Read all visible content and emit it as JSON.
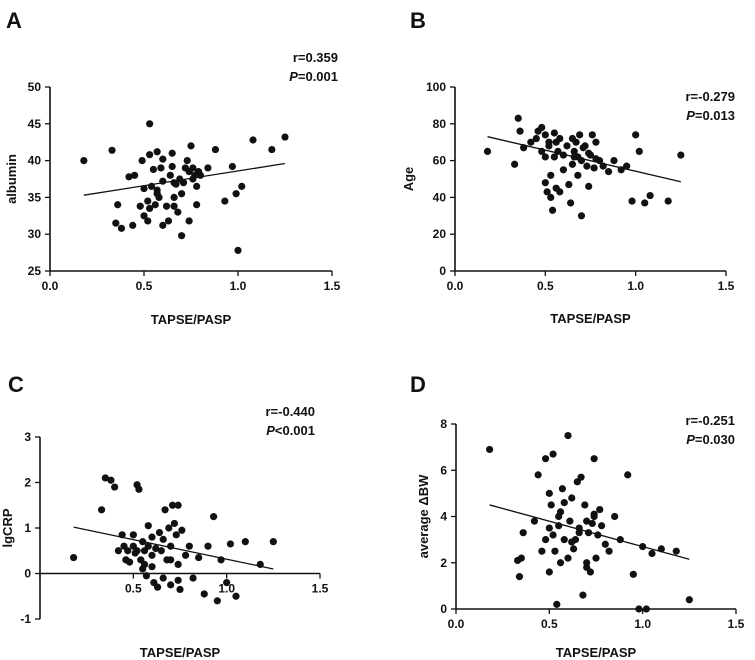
{
  "chart_data": [
    {
      "panel": "A",
      "type": "scatter",
      "xlabel": "TAPSE/PASP",
      "ylabel": "albumin",
      "xlim": [
        0,
        1.5
      ],
      "ylim": [
        25,
        50
      ],
      "xticks": [
        0.0,
        0.5,
        1.0,
        1.5
      ],
      "xtick_labels": [
        "0.0",
        "0.5",
        "1.0",
        "1.5"
      ],
      "yticks": [
        25,
        30,
        35,
        40,
        45,
        50
      ],
      "ytick_labels": [
        "25",
        "30",
        "35",
        "40",
        "45",
        "50"
      ],
      "stats": {
        "r_text": "r=0.359",
        "p_label": "P",
        "p_value": "=0.001"
      },
      "fit_line": {
        "x": [
          0.18,
          1.25
        ],
        "y": [
          35.3,
          39.6
        ]
      },
      "points": {
        "x": [
          0.18,
          0.33,
          0.35,
          0.36,
          0.38,
          0.42,
          0.44,
          0.45,
          0.48,
          0.49,
          0.5,
          0.5,
          0.52,
          0.52,
          0.53,
          0.53,
          0.54,
          0.55,
          0.56,
          0.57,
          0.57,
          0.58,
          0.59,
          0.6,
          0.6,
          0.6,
          0.62,
          0.63,
          0.64,
          0.65,
          0.65,
          0.66,
          0.66,
          0.67,
          0.68,
          0.69,
          0.7,
          0.7,
          0.71,
          0.72,
          0.73,
          0.74,
          0.74,
          0.75,
          0.76,
          0.76,
          0.77,
          0.78,
          0.78,
          0.79,
          0.8,
          0.84,
          0.88,
          0.93,
          0.97,
          0.99,
          1.0,
          1.02,
          1.08,
          1.18,
          1.25,
          0.53,
          0.57,
          0.66
        ],
        "y": [
          40.0,
          41.4,
          31.5,
          34.0,
          30.8,
          37.8,
          31.2,
          38.0,
          33.8,
          40.0,
          32.5,
          36.2,
          34.5,
          31.8,
          40.8,
          45.0,
          36.5,
          38.8,
          34.0,
          35.5,
          41.2,
          35.0,
          39.0,
          31.2,
          37.2,
          40.2,
          33.8,
          31.8,
          38.0,
          39.2,
          41.0,
          37.0,
          35.0,
          36.8,
          33.0,
          37.5,
          29.8,
          35.5,
          37.0,
          39.0,
          40.0,
          38.5,
          31.8,
          42.0,
          37.5,
          39.0,
          38.0,
          36.5,
          34.0,
          38.5,
          38.0,
          39.0,
          41.5,
          34.5,
          39.2,
          35.5,
          27.8,
          36.5,
          42.8,
          41.5,
          43.2,
          33.5,
          36.0,
          33.8
        ]
      }
    },
    {
      "panel": "B",
      "type": "scatter",
      "xlabel": "TAPSE/PASP",
      "ylabel": "Age",
      "xlim": [
        0,
        1.5
      ],
      "ylim": [
        0,
        100
      ],
      "xticks": [
        0.0,
        0.5,
        1.0,
        1.5
      ],
      "xtick_labels": [
        "0.0",
        "0.5",
        "1.0",
        "1.5"
      ],
      "yticks": [
        0,
        20,
        40,
        60,
        80,
        100
      ],
      "ytick_labels": [
        "0",
        "20",
        "40",
        "60",
        "80",
        "100"
      ],
      "stats": {
        "r_text": "r=-0.279",
        "p_label": "P",
        "p_value": "=0.013"
      },
      "fit_line": {
        "x": [
          0.18,
          1.25
        ],
        "y": [
          73.0,
          48.5
        ]
      },
      "points": {
        "x": [
          0.18,
          0.33,
          0.35,
          0.36,
          0.38,
          0.42,
          0.45,
          0.46,
          0.48,
          0.48,
          0.5,
          0.5,
          0.51,
          0.52,
          0.52,
          0.53,
          0.53,
          0.54,
          0.55,
          0.55,
          0.56,
          0.57,
          0.58,
          0.58,
          0.6,
          0.6,
          0.62,
          0.63,
          0.64,
          0.65,
          0.65,
          0.66,
          0.67,
          0.68,
          0.68,
          0.69,
          0.7,
          0.7,
          0.71,
          0.72,
          0.73,
          0.74,
          0.74,
          0.75,
          0.76,
          0.77,
          0.78,
          0.78,
          0.8,
          0.82,
          0.85,
          0.88,
          0.92,
          0.95,
          0.98,
          1.0,
          1.02,
          1.05,
          1.08,
          1.18,
          1.25,
          0.5,
          0.56,
          0.66
        ],
        "y": [
          65,
          58,
          83,
          76,
          67,
          70,
          72,
          76,
          65,
          78,
          62,
          74,
          43,
          70,
          68,
          52,
          40,
          33,
          75,
          62,
          70,
          65,
          43,
          72,
          63,
          55,
          68,
          47,
          37,
          72,
          58,
          65,
          70,
          62,
          52,
          74,
          30,
          60,
          67,
          68,
          57,
          64,
          46,
          63,
          74,
          56,
          70,
          61,
          60,
          57,
          54,
          60,
          55,
          57,
          38,
          74,
          65,
          37,
          41,
          38,
          63,
          48,
          45,
          62
        ]
      }
    },
    {
      "panel": "C",
      "type": "scatter",
      "xlabel": "TAPSE/PASP",
      "ylabel": "lgCRP",
      "xlim": [
        0,
        1.5
      ],
      "ylim": [
        -1,
        3
      ],
      "xticks": [
        0.0,
        0.5,
        1.0,
        1.5
      ],
      "xtick_labels": [
        "",
        "0.5",
        "1.0",
        "1.5"
      ],
      "yticks": [
        -1,
        0,
        1,
        2,
        3
      ],
      "ytick_labels": [
        "-1",
        "0",
        "1",
        "2",
        "3"
      ],
      "stats": {
        "r_text": "r=-0.440",
        "p_label": "P",
        "p_value": "<0.001"
      },
      "fit_line": {
        "x": [
          0.18,
          1.25
        ],
        "y": [
          1.02,
          0.1
        ]
      },
      "points": {
        "x": [
          0.18,
          0.33,
          0.35,
          0.38,
          0.4,
          0.42,
          0.44,
          0.45,
          0.46,
          0.47,
          0.48,
          0.5,
          0.5,
          0.51,
          0.52,
          0.53,
          0.54,
          0.55,
          0.55,
          0.56,
          0.57,
          0.58,
          0.58,
          0.6,
          0.6,
          0.61,
          0.62,
          0.63,
          0.64,
          0.65,
          0.66,
          0.67,
          0.68,
          0.69,
          0.7,
          0.7,
          0.71,
          0.72,
          0.73,
          0.74,
          0.74,
          0.75,
          0.76,
          0.78,
          0.8,
          0.82,
          0.85,
          0.88,
          0.9,
          0.93,
          0.95,
          0.97,
          1.0,
          1.02,
          1.05,
          1.1,
          1.18,
          1.25,
          0.52,
          0.56,
          0.6,
          0.66,
          0.7,
          0.74
        ],
        "y": [
          0.35,
          1.4,
          2.1,
          2.05,
          1.9,
          0.5,
          0.85,
          0.6,
          0.3,
          0.5,
          0.25,
          0.85,
          0.6,
          0.45,
          1.95,
          1.85,
          0.3,
          0.7,
          0.1,
          0.5,
          -0.05,
          1.05,
          0.6,
          0.4,
          0.15,
          -0.2,
          0.55,
          -0.3,
          0.9,
          0.5,
          0.75,
          1.4,
          0.3,
          1.0,
          0.6,
          -0.25,
          1.5,
          1.1,
          0.85,
          1.5,
          0.2,
          -0.35,
          0.95,
          0.4,
          0.6,
          -0.1,
          0.35,
          -0.45,
          0.6,
          1.25,
          -0.6,
          0.3,
          -0.2,
          0.65,
          -0.5,
          0.7,
          0.2,
          0.7,
          0.5,
          0.2,
          0.8,
          -0.1,
          0.3,
          -0.15
        ]
      }
    },
    {
      "panel": "D",
      "type": "scatter",
      "xlabel": "TAPSE/PASP",
      "ylabel": "average ΔBW",
      "xlim": [
        0,
        1.5
      ],
      "ylim": [
        0,
        8
      ],
      "xticks": [
        0.0,
        0.5,
        1.0,
        1.5
      ],
      "xtick_labels": [
        "0.0",
        "0.5",
        "1.0",
        "1.5"
      ],
      "yticks": [
        0,
        2,
        4,
        6,
        8
      ],
      "ytick_labels": [
        "0",
        "2",
        "4",
        "6",
        "8"
      ],
      "stats": {
        "r_text": "r=-0.251",
        "p_label": "P",
        "p_value": "=0.030"
      },
      "fit_line": {
        "x": [
          0.18,
          1.25
        ],
        "y": [
          4.5,
          2.15
        ]
      },
      "points": {
        "x": [
          0.18,
          0.33,
          0.34,
          0.35,
          0.36,
          0.42,
          0.44,
          0.46,
          0.48,
          0.48,
          0.5,
          0.5,
          0.51,
          0.52,
          0.52,
          0.53,
          0.54,
          0.55,
          0.55,
          0.56,
          0.57,
          0.58,
          0.58,
          0.6,
          0.6,
          0.61,
          0.62,
          0.63,
          0.64,
          0.65,
          0.66,
          0.67,
          0.68,
          0.69,
          0.7,
          0.7,
          0.71,
          0.72,
          0.73,
          0.74,
          0.74,
          0.75,
          0.76,
          0.77,
          0.78,
          0.8,
          0.82,
          0.85,
          0.88,
          0.92,
          0.95,
          0.98,
          1.0,
          1.02,
          1.05,
          1.1,
          1.18,
          1.25,
          0.5,
          0.56,
          0.62,
          0.66,
          0.7,
          0.74
        ],
        "y": [
          6.9,
          2.1,
          1.4,
          2.2,
          3.3,
          3.8,
          5.8,
          2.5,
          6.5,
          3.0,
          3.5,
          1.6,
          4.5,
          6.7,
          3.2,
          2.5,
          0.2,
          4.0,
          3.6,
          2.0,
          5.2,
          3.0,
          4.6,
          2.2,
          7.5,
          3.8,
          4.8,
          2.6,
          3.0,
          5.5,
          3.3,
          5.7,
          0.6,
          4.5,
          3.8,
          2.0,
          3.3,
          1.6,
          3.7,
          6.5,
          4.0,
          2.2,
          3.2,
          4.3,
          3.6,
          2.8,
          2.5,
          4.0,
          3.0,
          5.8,
          1.5,
          0.0,
          2.7,
          0.0,
          2.4,
          2.6,
          2.5,
          0.4,
          5.0,
          4.2,
          2.9,
          3.5,
          1.8,
          4.1
        ]
      }
    }
  ]
}
